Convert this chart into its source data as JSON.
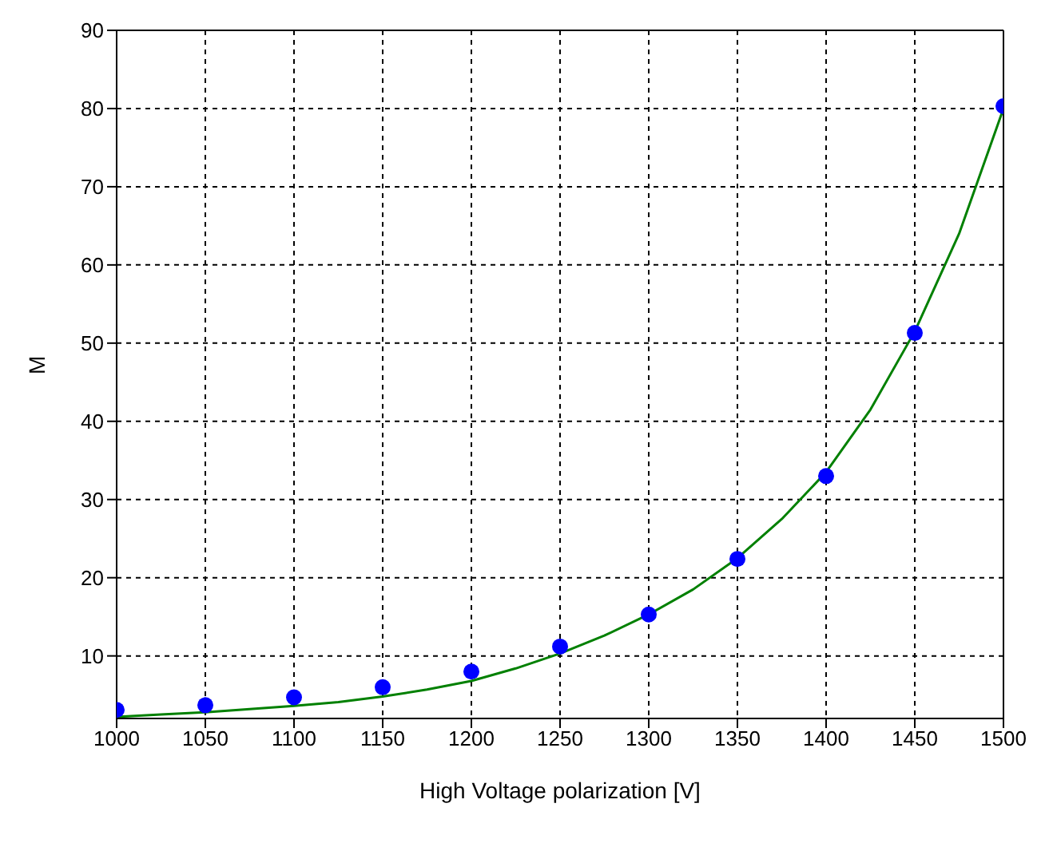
{
  "chart_data": {
    "type": "scatter",
    "xlabel": "High Voltage polarization [V]",
    "ylabel": "M",
    "xlim": [
      1000,
      1500
    ],
    "xticks": [
      1000,
      1050,
      1100,
      1150,
      1200,
      1250,
      1300,
      1350,
      1400,
      1450,
      1500
    ],
    "ylim": [
      2,
      90
    ],
    "yticks": [
      10,
      20,
      30,
      40,
      50,
      60,
      70,
      80,
      90
    ],
    "grid": true,
    "series": [
      {
        "color": "#0000ff",
        "marker": "circle",
        "x": [
          1000,
          1050,
          1100,
          1150,
          1200,
          1250,
          1300,
          1350,
          1400,
          1450,
          1500
        ],
        "values": [
          3.1,
          3.7,
          4.7,
          6,
          8,
          11.2,
          15.3,
          22.4,
          33,
          51.3,
          80.3
        ]
      },
      {
        "type": "line",
        "color": "#008000",
        "marker": "none",
        "x": [
          1000,
          1025,
          1050,
          1075,
          1100,
          1125,
          1150,
          1175,
          1200,
          1225,
          1250,
          1275,
          1300,
          1325,
          1350,
          1375,
          1400,
          1425,
          1450,
          1475,
          1500
        ],
        "values": [
          2.2,
          2.5,
          2.8,
          3.2,
          3.6,
          4.1,
          4.8,
          5.7,
          6.8,
          8.4,
          10.3,
          12.6,
          15.3,
          18.5,
          22.5,
          27.5,
          33.5,
          41.5,
          51.5,
          64,
          80
        ]
      }
    ]
  }
}
